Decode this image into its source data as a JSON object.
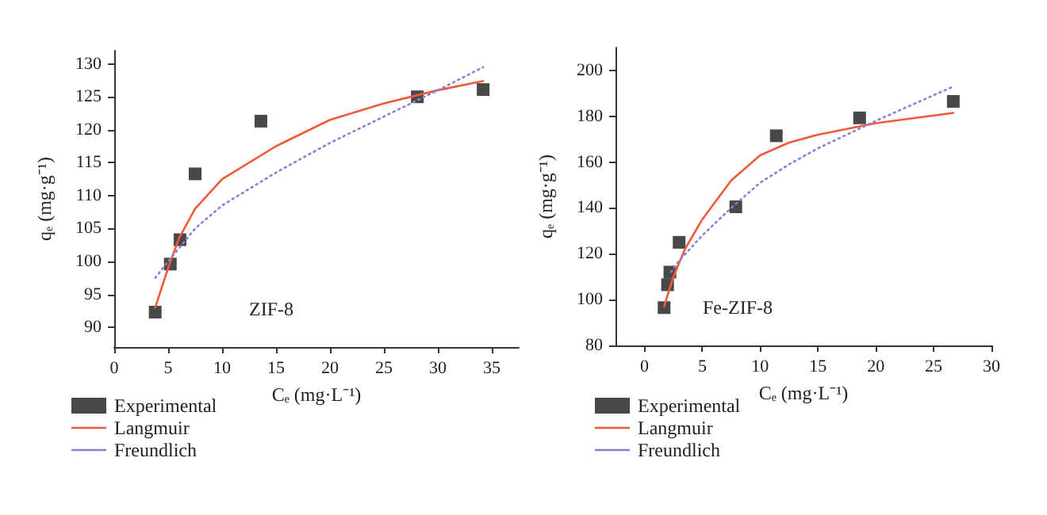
{
  "chart_data": [
    {
      "type": "scatter",
      "xlabel": "Cₑ (mg·L⁻¹)",
      "ylabel": "qₑ (mg·g⁻¹)",
      "annotations": [
        "ZIF-8"
      ],
      "xlim": [
        0,
        37.5
      ],
      "xticks": [
        0,
        5,
        10,
        15,
        20,
        25,
        30,
        35
      ],
      "ylim": [
        87,
        132
      ],
      "yticks": [
        90,
        95,
        100,
        105,
        110,
        115,
        120,
        125,
        130
      ],
      "grid": false,
      "legend": "bottom left",
      "series": [
        {
          "name": "Experimental",
          "marker": "square",
          "color": "#1a1a1a",
          "x": [
            3.8,
            5.2,
            6.1,
            7.5,
            13.6,
            28.1,
            34.2
          ],
          "values": [
            92.3,
            99.6,
            103.3,
            113.3,
            121.3,
            125,
            126.1
          ]
        },
        {
          "name": "Langmuir",
          "type": "line",
          "marker": "none",
          "line_style": "solid",
          "color": "#f05a3a",
          "x": [
            3.8,
            5,
            6,
            7.5,
            10,
            15,
            20,
            25,
            30,
            34.2
          ],
          "values": [
            93,
            99,
            103.5,
            108,
            112.5,
            117.5,
            121.5,
            124,
            126,
            127.4
          ]
        },
        {
          "name": "Freundlich",
          "type": "line",
          "marker": "none",
          "line_style": "dotted",
          "color": "#8a80d0",
          "x": [
            3.8,
            5,
            7.5,
            10,
            15,
            20,
            25,
            30,
            34.2
          ],
          "values": [
            97.5,
            100,
            105,
            108.5,
            113.5,
            118,
            122,
            126,
            129.5
          ]
        }
      ]
    },
    {
      "type": "scatter",
      "xlabel": "Cₑ (mg·L⁻¹)",
      "ylabel": "qₑ (mg·g⁻¹)",
      "annotations": [
        "Fe-ZIF-8"
      ],
      "xlim": [
        -2.5,
        30
      ],
      "xticks": [
        0,
        5,
        10,
        15,
        20,
        25,
        30
      ],
      "ylim": [
        80,
        210
      ],
      "yticks": [
        80,
        100,
        120,
        140,
        160,
        180,
        200
      ],
      "grid": false,
      "legend": "bottom left",
      "series": [
        {
          "name": "Experimental",
          "marker": "square",
          "color": "#1a1a1a",
          "x": [
            1.7,
            2.0,
            2.2,
            3.0,
            7.9,
            11.4,
            18.6,
            26.7
          ],
          "values": [
            96.5,
            106.5,
            112,
            125,
            140.5,
            171.5,
            179.3,
            186.5
          ]
        },
        {
          "name": "Langmuir",
          "type": "line",
          "marker": "none",
          "line_style": "solid",
          "color": "#f05a3a",
          "x": [
            1.7,
            2.5,
            3.5,
            5,
            7.5,
            10,
            12.5,
            15,
            20,
            26.7
          ],
          "values": [
            97,
            110,
            122,
            135,
            152,
            163,
            168.5,
            172,
            177,
            181.5
          ]
        },
        {
          "name": "Freundlich",
          "type": "line",
          "marker": "none",
          "line_style": "dotted",
          "color": "#8a80d0",
          "x": [
            2.3,
            3,
            5,
            7.5,
            10,
            12.5,
            15,
            20,
            26.7
          ],
          "values": [
            112,
            117,
            128,
            140,
            151,
            159,
            166,
            178,
            193
          ]
        }
      ]
    }
  ]
}
